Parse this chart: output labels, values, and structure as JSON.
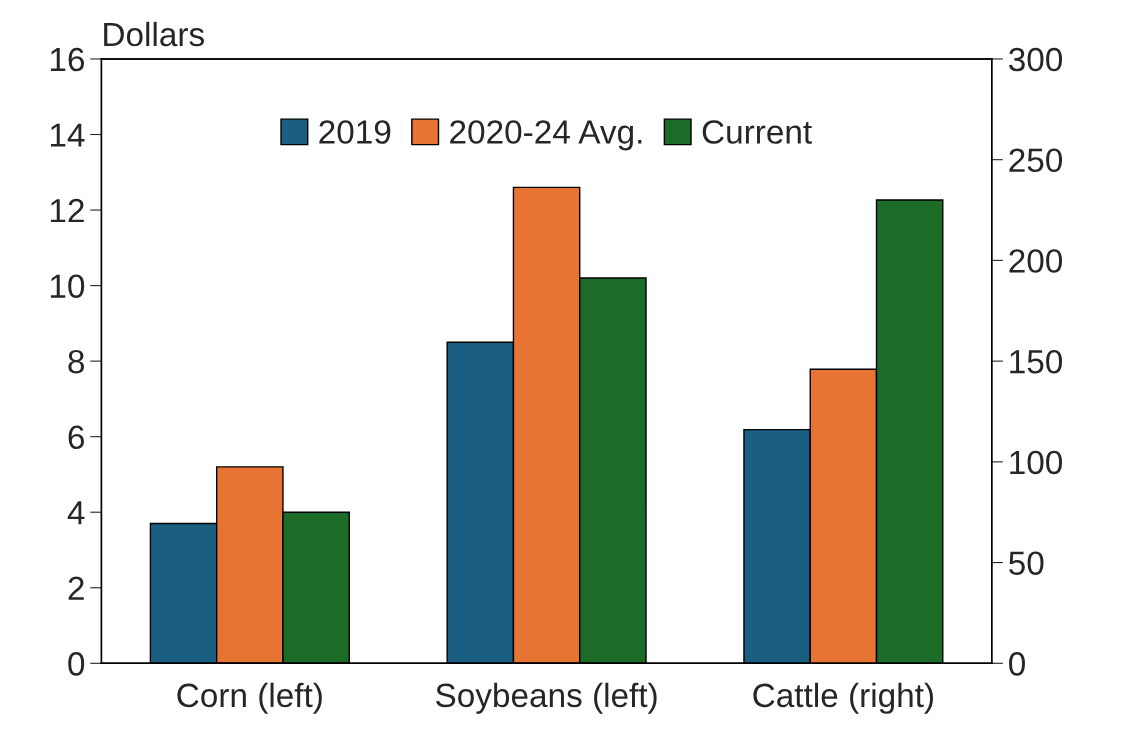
{
  "chart_data": {
    "type": "bar",
    "ylabel": "Dollars",
    "categories": [
      "Corn (left)",
      "Soybeans (left)",
      "Cattle (right)"
    ],
    "series": [
      {
        "name": "2019",
        "color": "#1a5f82",
        "values": [
          3.7,
          8.5,
          null
        ]
      },
      {
        "name": "2020-24 Avg.",
        "color": "#e87434",
        "values": [
          5.2,
          12.6,
          null
        ]
      },
      {
        "name": "Current",
        "color": "#1c6b27",
        "values": [
          4.0,
          10.2,
          null
        ]
      },
      {
        "color": "#1a5f82",
        "values": [
          null,
          null,
          116
        ],
        "axis": "y2"
      },
      {
        "color": "#e87434",
        "values": [
          null,
          null,
          146
        ],
        "axis": "y2"
      },
      {
        "color": "#1c6b27",
        "values": [
          null,
          null,
          230
        ],
        "axis": "y2"
      }
    ],
    "ylim": [
      0,
      16
    ],
    "yticks": [
      0,
      2,
      4,
      6,
      8,
      10,
      12,
      14,
      16
    ],
    "y2lim": [
      0,
      300
    ],
    "y2ticks": [
      0,
      50,
      100,
      150,
      200,
      250,
      300
    ],
    "legend": "top",
    "grid": false
  }
}
